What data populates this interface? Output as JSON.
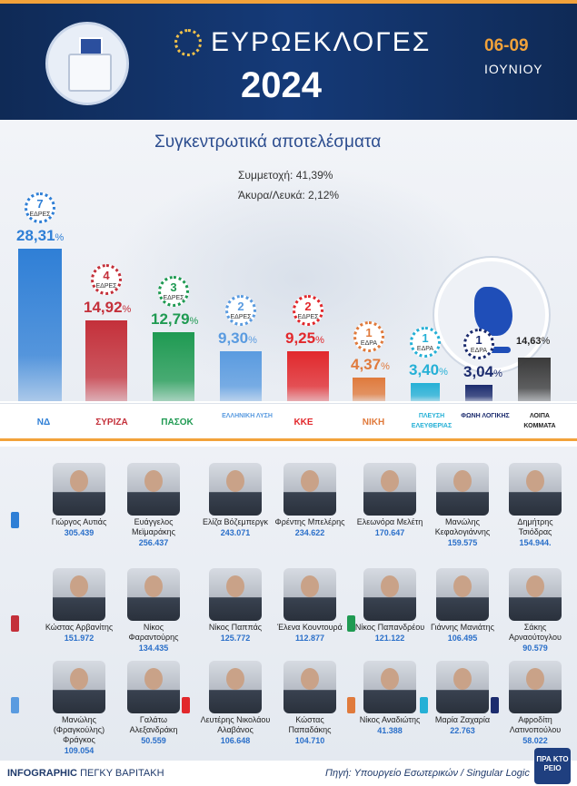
{
  "header": {
    "title": "ΕΥΡΩΕΚΛΟΓΕΣ",
    "year": "2024",
    "date_range": "06-09",
    "month": "ΙΟΥΝΙΟΥ"
  },
  "summary": {
    "subtitle": "Συγκεντρωτικά αποτελέσματα",
    "participation": "Συμμετοχή: 41,39%",
    "invalid_blank": "Άκυρα/Λευκά: 2,12%"
  },
  "colors": {
    "nd": "#2f7fd6",
    "syriza": "#c4303a",
    "pasok": "#1f9a52",
    "el": "#5a9be0",
    "kke": "#e2282c",
    "niki": "#e07a3c",
    "pe": "#25b0d6",
    "fl": "#1c2c6e",
    "other": "#3a3a3a",
    "accent": "#f2a23a"
  },
  "chart_data": {
    "type": "bar",
    "title": "Συγκεντρωτικά αποτελέσματα",
    "categories": [
      "ΝΔ",
      "ΣΥΡΙΖΑ",
      "ΠΑΣΟΚ",
      "ΕΛΛΗΝΙΚΗ ΛΥΣΗ",
      "ΚΚΕ",
      "ΝΙΚΗ",
      "ΠΛΕΥΣΗ ΕΛΕΥΘΕΡΙΑΣ",
      "ΦΩΝΗ ΛΟΓΙΚΗΣ",
      "ΛΟΙΠΑ ΚΟΜΜΑΤΑ"
    ],
    "ylim": [
      0,
      30
    ],
    "series": [
      {
        "values": [
          28.31,
          14.92,
          12.79,
          9.3,
          9.25,
          4.37,
          3.4,
          3.04,
          14.63
        ]
      }
    ],
    "labels": [
      "28,31",
      "14,92",
      "12,79",
      "9,30",
      "9,25",
      "4,37",
      "3,40",
      "3,04",
      "14,63"
    ],
    "percent_sign": "%",
    "seats": [
      {
        "n": "7",
        "label": "ΕΔΡΕΣ"
      },
      {
        "n": "4",
        "label": "ΕΔΡΕΣ"
      },
      {
        "n": "3",
        "label": "ΕΔΡΕΣ"
      },
      {
        "n": "2",
        "label": "ΕΔΡΕΣ"
      },
      {
        "n": "2",
        "label": "ΕΔΡΕΣ"
      },
      {
        "n": "1",
        "label": "ΕΔΡΑ"
      },
      {
        "n": "1",
        "label": "ΕΔΡΑ"
      },
      {
        "n": "1",
        "label": "ΕΔΡΑ"
      }
    ],
    "bar_colors": [
      "#2f7fd6",
      "#c4303a",
      "#1f9a52",
      "#5a9be0",
      "#e2282c",
      "#e07a3c",
      "#25b0d6",
      "#1c2c6e",
      "#3a3a3a"
    ],
    "label_colors": [
      "#2f7fd6",
      "#c4303a",
      "#1f9a52",
      "#5a9be0",
      "#e2282c",
      "#e07a3c",
      "#25b0d6",
      "#1c2c6e",
      "#222222"
    ]
  },
  "logos": [
    "ΝΔ",
    "ΣΥΡΙΖΑ",
    "ΠΑΣΟΚ",
    "ΕΛΛΗΝΙΚΗ ΛΥΣΗ",
    "ΚΚΕ",
    "ΝΙΚΗ",
    "ΠΛΕΥΣΗ ΕΛΕΥΘΕΡΙΑΣ",
    "ΦΩΝΗ ΛΟΓΙΚΗΣ",
    "ΛΟΙΠΑ ΚΟΜΜΑΤΑ"
  ],
  "candidates": [
    {
      "name": "Γιώργος Αυτιάς",
      "votes": "305.439",
      "party": "nd"
    },
    {
      "name": "Ευάγγελος Μεϊμαράκης",
      "votes": "256.437",
      "party": "nd"
    },
    {
      "name": "Ελίζα Βόζεμπεργκ",
      "votes": "243.071",
      "party": "nd"
    },
    {
      "name": "Φρέντης Μπελέρης",
      "votes": "234.622",
      "party": "nd"
    },
    {
      "name": "Ελεωνόρα Μελέτη",
      "votes": "170.647",
      "party": "nd"
    },
    {
      "name": "Μανώλης Κεφαλογιάννης",
      "votes": "159.575",
      "party": "nd"
    },
    {
      "name": "Δημήτρης Τσιόδρας",
      "votes": "154.944.",
      "party": "nd"
    },
    {
      "name": "Κώστας Αρβανίτης",
      "votes": "151.972",
      "party": "syriza"
    },
    {
      "name": "Νίκος Φαραντούρης",
      "votes": "134.435",
      "party": "syriza"
    },
    {
      "name": "Νίκος Παππάς",
      "votes": "125.772",
      "party": "syriza"
    },
    {
      "name": "Έλενα Κουντουρά",
      "votes": "112.877",
      "party": "syriza"
    },
    {
      "name": "Νίκος Παπανδρέου",
      "votes": "121.122",
      "party": "pasok"
    },
    {
      "name": "Γιάννης Μανιάτης",
      "votes": "106.495",
      "party": "pasok"
    },
    {
      "name": "Σάκης Αρναούτογλου",
      "votes": "90.579",
      "party": "pasok"
    },
    {
      "name": "Μανώλης (Φραγκούλης) Φράγκος",
      "votes": "109.054",
      "party": "el"
    },
    {
      "name": "Γαλάτω Αλεξανδράκη",
      "votes": "50.559",
      "party": "el"
    },
    {
      "name": "Λευτέρης Νικολάου Αλαβάνος",
      "votes": "106.648",
      "party": "kke"
    },
    {
      "name": "Κώστας Παπαδάκης",
      "votes": "104.710",
      "party": "kke"
    },
    {
      "name": "Νίκος Αναδιώτης",
      "votes": "41.388",
      "party": "niki"
    },
    {
      "name": "Μαρία Ζαχαρία",
      "votes": "22.763",
      "party": "pe"
    },
    {
      "name": "Αφροδίτη Λατινοπούλου",
      "votes": "58.022",
      "party": "fl"
    }
  ],
  "footer": {
    "credit_bold": "INFOGRAPHIC",
    "credit_name": "ΠΕΓΚΥ ΒΑΡΙΤΑΚΗ",
    "source": "Πηγή: Υπουργείο Εσωτερικών / Singular Logic",
    "brand": "ΠΡΑ ΚΤΟ ΡΕΙΟ"
  }
}
